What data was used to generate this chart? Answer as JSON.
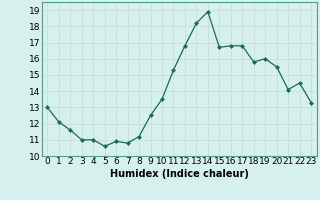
{
  "x": [
    0,
    1,
    2,
    3,
    4,
    5,
    6,
    7,
    8,
    9,
    10,
    11,
    12,
    13,
    14,
    15,
    16,
    17,
    18,
    19,
    20,
    21,
    22,
    23
  ],
  "y": [
    13.0,
    12.1,
    11.6,
    11.0,
    11.0,
    10.6,
    10.9,
    10.8,
    11.2,
    12.5,
    13.5,
    15.3,
    16.8,
    18.2,
    18.9,
    16.7,
    16.8,
    16.8,
    15.8,
    16.0,
    15.5,
    14.1,
    14.5,
    13.3
  ],
  "xlabel": "Humidex (Indice chaleur)",
  "xlim": [
    -0.5,
    23.5
  ],
  "ylim": [
    10,
    19.5
  ],
  "yticks": [
    10,
    11,
    12,
    13,
    14,
    15,
    16,
    17,
    18,
    19
  ],
  "xticks": [
    0,
    1,
    2,
    3,
    4,
    5,
    6,
    7,
    8,
    9,
    10,
    11,
    12,
    13,
    14,
    15,
    16,
    17,
    18,
    19,
    20,
    21,
    22,
    23
  ],
  "xtick_labels": [
    "0",
    "1",
    "2",
    "3",
    "4",
    "5",
    "6",
    "7",
    "8",
    "9",
    "10",
    "11",
    "12",
    "13",
    "14",
    "15",
    "16",
    "17",
    "18",
    "19",
    "20",
    "21",
    "22",
    "23"
  ],
  "line_color": "#1a6b5a",
  "marker_color": "#1a6b5a",
  "bg_color": "#d6f0ed",
  "grid_color_major": "#c8dbd8",
  "grid_color_minor": "#e0eeec",
  "label_fontsize": 7,
  "tick_fontsize": 6.5
}
